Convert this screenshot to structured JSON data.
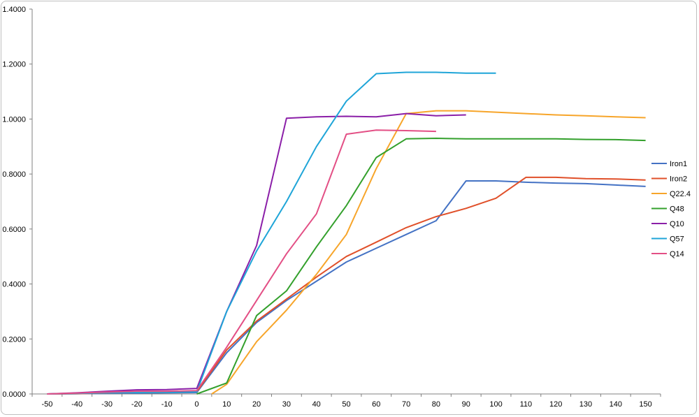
{
  "chart_data": {
    "type": "line",
    "title": "",
    "xlabel": "",
    "ylabel": "",
    "xlim": [
      -50,
      150
    ],
    "ylim": [
      0,
      1.4
    ],
    "x_ticks": [
      "-50",
      "-40",
      "-30",
      "-20",
      "-10",
      "0",
      "10",
      "20",
      "30",
      "40",
      "50",
      "60",
      "70",
      "80",
      "90",
      "100",
      "110",
      "120",
      "130",
      "140",
      "150"
    ],
    "y_ticks": [
      "0.0000",
      "0.2000",
      "0.4000",
      "0.6000",
      "0.8000",
      "1.0000",
      "1.2000",
      "1.4000"
    ],
    "grid": false,
    "legend_position": "right",
    "series": [
      {
        "name": "Iron1",
        "color": "#4472C4",
        "points": [
          [
            -50,
            0
          ],
          [
            -40,
            0.001
          ],
          [
            -30,
            0.002
          ],
          [
            -20,
            0.003
          ],
          [
            -10,
            0.004
          ],
          [
            0,
            0.005
          ],
          [
            10,
            0.15
          ],
          [
            20,
            0.26
          ],
          [
            30,
            0.34
          ],
          [
            40,
            0.41
          ],
          [
            50,
            0.48
          ],
          [
            60,
            0.53
          ],
          [
            70,
            0.58
          ],
          [
            80,
            0.63
          ],
          [
            90,
            0.775
          ],
          [
            100,
            0.775
          ],
          [
            110,
            0.77
          ],
          [
            120,
            0.767
          ],
          [
            130,
            0.765
          ],
          [
            140,
            0.76
          ],
          [
            150,
            0.755
          ]
        ]
      },
      {
        "name": "Iron2",
        "color": "#E0502A",
        "points": [
          [
            -50,
            0
          ],
          [
            -40,
            0.001
          ],
          [
            -30,
            0.003
          ],
          [
            -20,
            0.005
          ],
          [
            -10,
            0.006
          ],
          [
            0,
            0.008
          ],
          [
            10,
            0.16
          ],
          [
            20,
            0.265
          ],
          [
            30,
            0.345
          ],
          [
            40,
            0.425
          ],
          [
            50,
            0.5
          ],
          [
            60,
            0.552
          ],
          [
            70,
            0.605
          ],
          [
            80,
            0.645
          ],
          [
            90,
            0.675
          ],
          [
            100,
            0.712
          ],
          [
            110,
            0.788
          ],
          [
            120,
            0.788
          ],
          [
            130,
            0.783
          ],
          [
            140,
            0.782
          ],
          [
            150,
            0.778
          ]
        ]
      },
      {
        "name": "Q22.4",
        "color": "#F7A52A",
        "points": [
          [
            5,
            0
          ],
          [
            10,
            0.035
          ],
          [
            20,
            0.19
          ],
          [
            30,
            0.305
          ],
          [
            40,
            0.435
          ],
          [
            50,
            0.58
          ],
          [
            60,
            0.82
          ],
          [
            70,
            1.02
          ],
          [
            80,
            1.03
          ],
          [
            90,
            1.03
          ],
          [
            100,
            1.025
          ],
          [
            110,
            1.02
          ],
          [
            120,
            1.015
          ],
          [
            130,
            1.012
          ],
          [
            140,
            1.008
          ],
          [
            150,
            1.005
          ]
        ]
      },
      {
        "name": "Q48",
        "color": "#33A02C",
        "points": [
          [
            0,
            0
          ],
          [
            10,
            0.04
          ],
          [
            20,
            0.285
          ],
          [
            30,
            0.375
          ],
          [
            40,
            0.535
          ],
          [
            50,
            0.685
          ],
          [
            60,
            0.86
          ],
          [
            70,
            0.928
          ],
          [
            80,
            0.93
          ],
          [
            90,
            0.928
          ],
          [
            100,
            0.928
          ],
          [
            110,
            0.928
          ],
          [
            120,
            0.928
          ],
          [
            130,
            0.926
          ],
          [
            140,
            0.925
          ],
          [
            150,
            0.922
          ]
        ]
      },
      {
        "name": "Q10",
        "color": "#8B1FA8",
        "points": [
          [
            -50,
            0
          ],
          [
            -40,
            0.004
          ],
          [
            -30,
            0.01
          ],
          [
            -20,
            0.015
          ],
          [
            -10,
            0.016
          ],
          [
            0,
            0.02
          ],
          [
            10,
            0.3
          ],
          [
            20,
            0.54
          ],
          [
            30,
            1.003
          ],
          [
            40,
            1.008
          ],
          [
            50,
            1.01
          ],
          [
            60,
            1.008
          ],
          [
            70,
            1.02
          ],
          [
            80,
            1.012
          ],
          [
            90,
            1.015
          ]
        ]
      },
      {
        "name": "Q57",
        "color": "#1FA5D8",
        "points": [
          [
            -50,
            0
          ],
          [
            -40,
            0.002
          ],
          [
            -30,
            0.004
          ],
          [
            -20,
            0.005
          ],
          [
            -10,
            0.006
          ],
          [
            0,
            0.008
          ],
          [
            10,
            0.3
          ],
          [
            20,
            0.52
          ],
          [
            30,
            0.7
          ],
          [
            40,
            0.9
          ],
          [
            50,
            1.065
          ],
          [
            60,
            1.165
          ],
          [
            70,
            1.17
          ],
          [
            80,
            1.17
          ],
          [
            90,
            1.167
          ],
          [
            100,
            1.167
          ]
        ]
      },
      {
        "name": "Q14",
        "color": "#E34F85",
        "points": [
          [
            -50,
            0
          ],
          [
            -40,
            0.003
          ],
          [
            -30,
            0.007
          ],
          [
            -20,
            0.01
          ],
          [
            -10,
            0.01
          ],
          [
            0,
            0.012
          ],
          [
            10,
            0.17
          ],
          [
            20,
            0.34
          ],
          [
            30,
            0.51
          ],
          [
            40,
            0.655
          ],
          [
            50,
            0.945
          ],
          [
            60,
            0.96
          ],
          [
            70,
            0.958
          ],
          [
            80,
            0.955
          ]
        ]
      }
    ]
  }
}
